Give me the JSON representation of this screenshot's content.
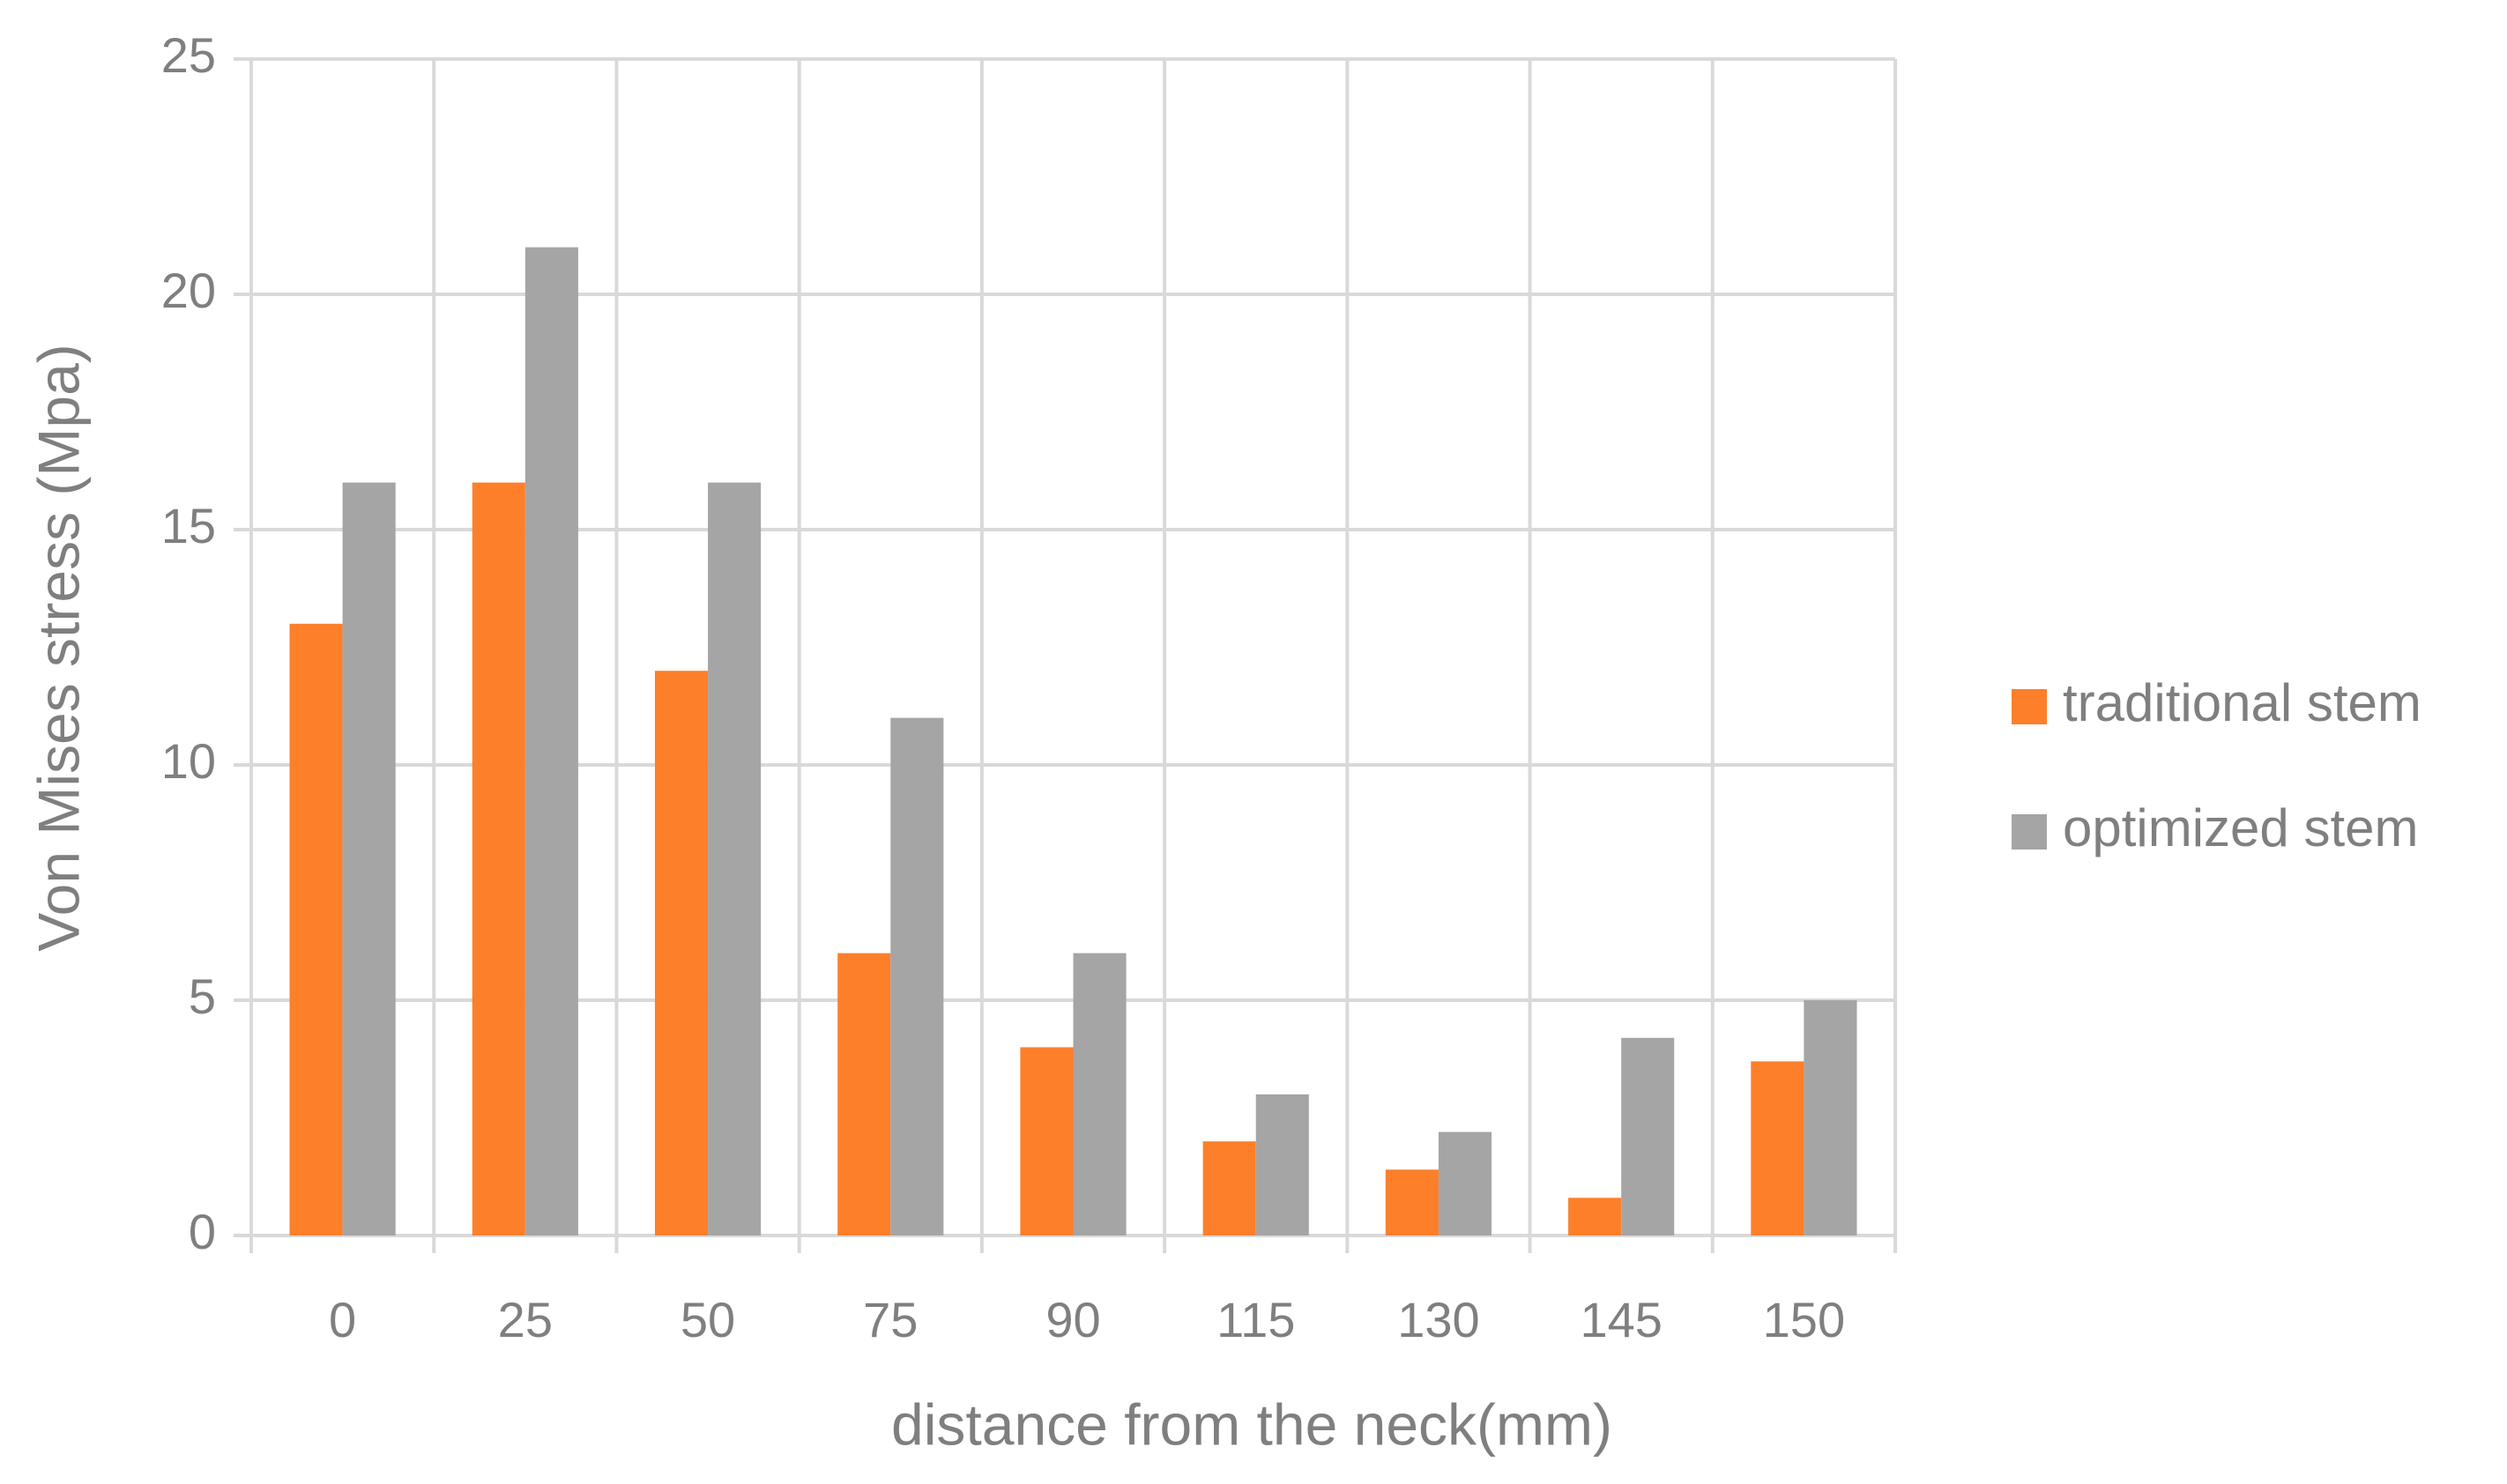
{
  "chart_data": {
    "type": "bar",
    "x_label": "distance from the neck(mm)",
    "y_label": "Von Mises stress (Mpa)",
    "categories": [
      "0",
      "25",
      "50",
      "75",
      "90",
      "115",
      "130",
      "145",
      "150"
    ],
    "series": [
      {
        "name": "traditional stem",
        "color": "#fd7f2a",
        "values": [
          13,
          16,
          12,
          6,
          4,
          2,
          1.4,
          0.8,
          3.7
        ]
      },
      {
        "name": "optimized stem",
        "color": "#a5a5a5",
        "values": [
          16,
          21,
          16,
          11,
          6,
          3,
          2.2,
          4.2,
          5
        ]
      }
    ],
    "ylim": [
      0,
      25
    ],
    "yticks": [
      0,
      5,
      10,
      15,
      20,
      25
    ],
    "grid": true,
    "legend": "right"
  }
}
